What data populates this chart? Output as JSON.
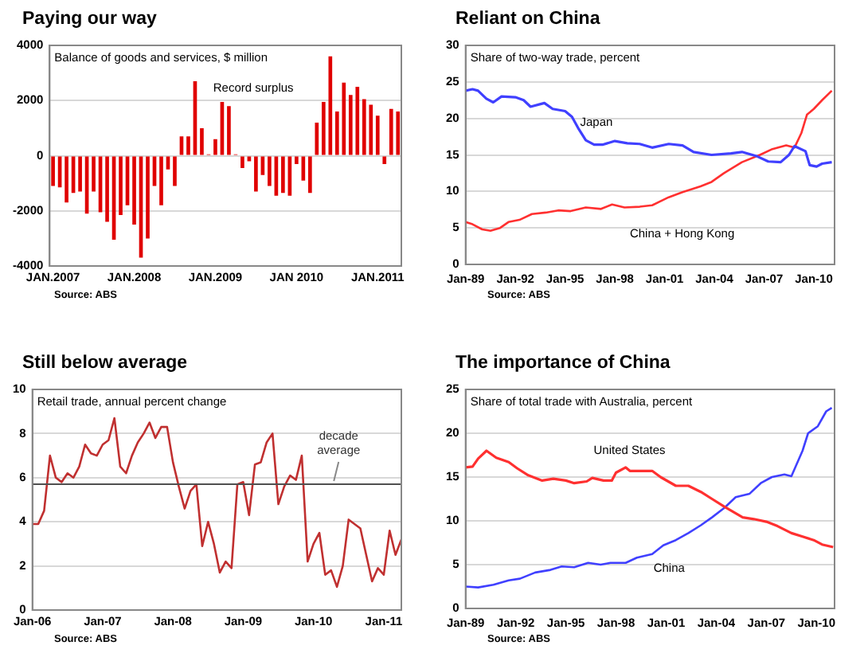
{
  "chart_data": [
    {
      "type": "bar",
      "title": "Paying our way",
      "subtitle": "Balance of goods and services, $ million",
      "categories": [
        "JAN.2007",
        null,
        null,
        null,
        null,
        null,
        null,
        null,
        null,
        null,
        null,
        null,
        "JAN.2008",
        null,
        null,
        null,
        null,
        null,
        null,
        null,
        null,
        null,
        null,
        null,
        "JAN.2009",
        null,
        null,
        null,
        null,
        null,
        null,
        null,
        null,
        null,
        null,
        null,
        "JAN 2010",
        null,
        null,
        null,
        null,
        null,
        null,
        null,
        null,
        null,
        null,
        null,
        "JAN.2011",
        null,
        null,
        null
      ],
      "values": [
        -1100,
        -1150,
        -1700,
        -1350,
        -1300,
        -2100,
        -1300,
        -2050,
        -2400,
        -3050,
        -2150,
        -1800,
        -2500,
        -3700,
        -3000,
        -1100,
        -1800,
        -500,
        -1100,
        700,
        700,
        2700,
        1000,
        50,
        600,
        1950,
        1800,
        50,
        -450,
        -200,
        -1300,
        -700,
        -1100,
        -1450,
        -1350,
        -1450,
        -300,
        -900,
        -1350,
        1200,
        1950,
        3600,
        1600,
        2650,
        2200,
        2500,
        2050,
        1850,
        1450,
        -300,
        1700,
        1600
      ],
      "color": "#e00000",
      "ylim": [
        -4000,
        4000
      ],
      "yticks": [
        -4000,
        -2000,
        0,
        2000,
        4000
      ],
      "grid": "y",
      "annotations": [
        "Record surplus",
        "Source: ABS"
      ]
    },
    {
      "type": "line",
      "title": "Reliant on China",
      "subtitle": "Share of two-way trade, percent",
      "series": [
        {
          "name": "Japan",
          "color": "#4040ff",
          "x": [
            "1989-01",
            "1989-06",
            "1989-10",
            "1990-04",
            "1990-09",
            "1991-03",
            "1992-01",
            "1992-07",
            "1992-12",
            "1993-10",
            "1994-04",
            "1995-01",
            "1995-06",
            "1995-11",
            "1996-04",
            "1996-10",
            "1997-04",
            "1998-01",
            "1998-10",
            "1999-07",
            "2000-04",
            "2001-04",
            "2002-02",
            "2002-10",
            "2003-11",
            "2005-01",
            "2005-09",
            "2006-08",
            "2007-04",
            "2008-01",
            "2008-07",
            "2008-11",
            "2009-07",
            "2009-10",
            "2010-03",
            "2010-07",
            "2011-02"
          ],
          "values": [
            23.8,
            24.0,
            23.8,
            22.7,
            22.2,
            23.0,
            22.9,
            22.5,
            21.6,
            22.1,
            21.3,
            21.0,
            20.2,
            18.5,
            17.0,
            16.4,
            16.4,
            16.9,
            16.6,
            16.5,
            16.0,
            16.5,
            16.3,
            15.4,
            15.0,
            15.2,
            15.4,
            14.8,
            14.1,
            14.0,
            15.0,
            16.2,
            15.5,
            13.6,
            13.4,
            13.8,
            14.0
          ]
        },
        {
          "name": "China + Hong Kong",
          "color": "#ff3030",
          "x": [
            "1989-01",
            "1989-06",
            "1990-01",
            "1990-07",
            "1991-02",
            "1991-08",
            "1992-04",
            "1993-01",
            "1993-11",
            "1994-08",
            "1995-05",
            "1996-04",
            "1997-03",
            "1997-11",
            "1998-08",
            "1999-07",
            "2000-04",
            "2001-04",
            "2002-02",
            "2003-03",
            "2003-11",
            "2004-08",
            "2005-09",
            "2006-10",
            "2007-07",
            "2008-05",
            "2008-11",
            "2009-04",
            "2009-08",
            "2010-01",
            "2010-07",
            "2011-02"
          ],
          "values": [
            5.8,
            5.5,
            4.8,
            4.6,
            5.0,
            5.8,
            6.1,
            6.9,
            7.1,
            7.4,
            7.3,
            7.8,
            7.6,
            8.2,
            7.8,
            7.9,
            8.1,
            9.2,
            9.9,
            10.7,
            11.3,
            12.5,
            14.0,
            15.0,
            15.8,
            16.3,
            16.0,
            18.0,
            20.5,
            21.3,
            22.5,
            23.8
          ]
        }
      ],
      "xlim": [
        "1989-01",
        "2011-04"
      ],
      "xticks": [
        {
          "value": "1989-01",
          "label": "Jan-89"
        },
        {
          "value": "1992-01",
          "label": "Jan-92"
        },
        {
          "value": "1995-01",
          "label": "Jan-95"
        },
        {
          "value": "1998-01",
          "label": "Jan-98"
        },
        {
          "value": "2001-01",
          "label": "Jan-01"
        },
        {
          "value": "2004-01",
          "label": "Jan-04"
        },
        {
          "value": "2007-01",
          "label": "Jan-07"
        },
        {
          "value": "2010-01",
          "label": "Jan-10"
        }
      ],
      "ylim": [
        0,
        30
      ],
      "yticks": [
        0,
        5,
        10,
        15,
        20,
        25,
        30
      ],
      "grid": "y",
      "annotations": [
        "Source: ABS"
      ]
    },
    {
      "type": "line",
      "title": "Still below average",
      "subtitle": "Retail trade, annual percent change",
      "categories": [
        "Jan-06",
        null,
        null,
        null,
        null,
        null,
        null,
        null,
        null,
        null,
        null,
        null,
        "Jan-07",
        null,
        null,
        null,
        null,
        null,
        null,
        null,
        null,
        null,
        null,
        null,
        "Jan-08",
        null,
        null,
        null,
        null,
        null,
        null,
        null,
        null,
        null,
        null,
        null,
        "Jan-09",
        null,
        null,
        null,
        null,
        null,
        null,
        null,
        null,
        null,
        null,
        null,
        "Jan-10",
        null,
        null,
        null,
        null,
        null,
        null,
        null,
        null,
        null,
        null,
        null,
        "Jan-11",
        null,
        null,
        null
      ],
      "values": [
        3.9,
        3.9,
        4.5,
        7.0,
        6.0,
        5.8,
        6.2,
        6.0,
        6.5,
        7.5,
        7.1,
        7.0,
        7.5,
        7.7,
        8.7,
        6.5,
        6.2,
        7.0,
        7.6,
        8.0,
        8.5,
        7.8,
        8.3,
        8.3,
        6.7,
        5.6,
        4.6,
        5.4,
        5.7,
        2.9,
        4.0,
        3.0,
        1.7,
        2.2,
        1.9,
        5.7,
        5.8,
        4.3,
        6.6,
        6.7,
        7.6,
        8.0,
        4.8,
        5.6,
        6.1,
        5.9,
        7.0,
        2.2,
        3.0,
        3.5,
        1.6,
        1.8,
        1.05,
        2.0,
        4.1,
        3.9,
        3.7,
        2.5,
        1.3,
        1.9,
        1.6,
        3.6,
        2.5,
        3.2
      ],
      "color": "#c03030",
      "ylim": [
        0,
        10
      ],
      "yticks": [
        0,
        2,
        4,
        6,
        8,
        10
      ],
      "grid": "y",
      "ref_lines": [
        {
          "axis": "y",
          "value": 5.7,
          "label": "decade average",
          "color": "#505050"
        }
      ],
      "annotations": [
        "Source: ABS"
      ]
    },
    {
      "type": "line",
      "title": "The importance of China",
      "subtitle": "Share of total trade with Australia, percent",
      "series": [
        {
          "name": "United States",
          "color": "#ff3030",
          "x": [
            "1989-01",
            "1989-06",
            "1989-10",
            "1990-04",
            "1990-11",
            "1991-08",
            "1992-02",
            "1992-10",
            "1993-08",
            "1994-04",
            "1995-01",
            "1995-07",
            "1996-04",
            "1996-08",
            "1997-04",
            "1997-10",
            "1998-01",
            "1998-08",
            "1998-11",
            "1999-07",
            "2000-03",
            "2000-09",
            "2001-08",
            "2002-05",
            "2003-02",
            "2003-10",
            "2004-07",
            "2005-08",
            "2006-04",
            "2007-01",
            "2007-09",
            "2008-07",
            "2009-03",
            "2009-11",
            "2010-05",
            "2011-01"
          ],
          "values": [
            16.1,
            16.2,
            17.1,
            18.0,
            17.2,
            16.7,
            16.0,
            15.2,
            14.6,
            14.8,
            14.6,
            14.3,
            14.5,
            14.9,
            14.6,
            14.6,
            15.5,
            16.1,
            15.7,
            15.7,
            15.7,
            15.0,
            14.0,
            14.0,
            13.3,
            12.5,
            11.6,
            10.4,
            10.2,
            9.9,
            9.4,
            8.6,
            8.2,
            7.8,
            7.3,
            7.0
          ]
        },
        {
          "name": "China",
          "color": "#4040ff",
          "x": [
            "1989-01",
            "1989-10",
            "1990-09",
            "1991-08",
            "1992-04",
            "1993-03",
            "1994-02",
            "1994-10",
            "1995-07",
            "1996-05",
            "1997-02",
            "1997-09",
            "1998-08",
            "1999-04",
            "2000-03",
            "2000-11",
            "2001-08",
            "2002-05",
            "2003-02",
            "2003-10",
            "2004-07",
            "2005-03",
            "2006-01",
            "2006-09",
            "2007-05",
            "2008-02",
            "2008-07",
            "2009-03",
            "2009-07",
            "2010-02",
            "2010-08",
            "2010-12"
          ],
          "values": [
            2.5,
            2.4,
            2.7,
            3.2,
            3.4,
            4.1,
            4.4,
            4.8,
            4.7,
            5.2,
            5.0,
            5.2,
            5.2,
            5.8,
            6.2,
            7.2,
            7.8,
            8.6,
            9.5,
            10.4,
            11.5,
            12.7,
            13.1,
            14.3,
            15.0,
            15.3,
            15.1,
            18.0,
            20.0,
            20.8,
            22.5,
            22.9
          ]
        }
      ],
      "xlim": [
        "1989-01",
        "2011-02"
      ],
      "xticks": [
        {
          "value": "1989-01",
          "label": "Jan-89"
        },
        {
          "value": "1992-01",
          "label": "Jan-92"
        },
        {
          "value": "1995-01",
          "label": "Jan-95"
        },
        {
          "value": "1998-01",
          "label": "Jan-98"
        },
        {
          "value": "2001-01",
          "label": "Jan-01"
        },
        {
          "value": "2004-01",
          "label": "Jan-04"
        },
        {
          "value": "2007-01",
          "label": "Jan-07"
        },
        {
          "value": "2010-01",
          "label": "Jan-10"
        }
      ],
      "ylim": [
        0,
        25
      ],
      "yticks": [
        0,
        5,
        10,
        15,
        20,
        25
      ],
      "grid": "y",
      "annotations": [
        "Source: ABS"
      ]
    }
  ]
}
